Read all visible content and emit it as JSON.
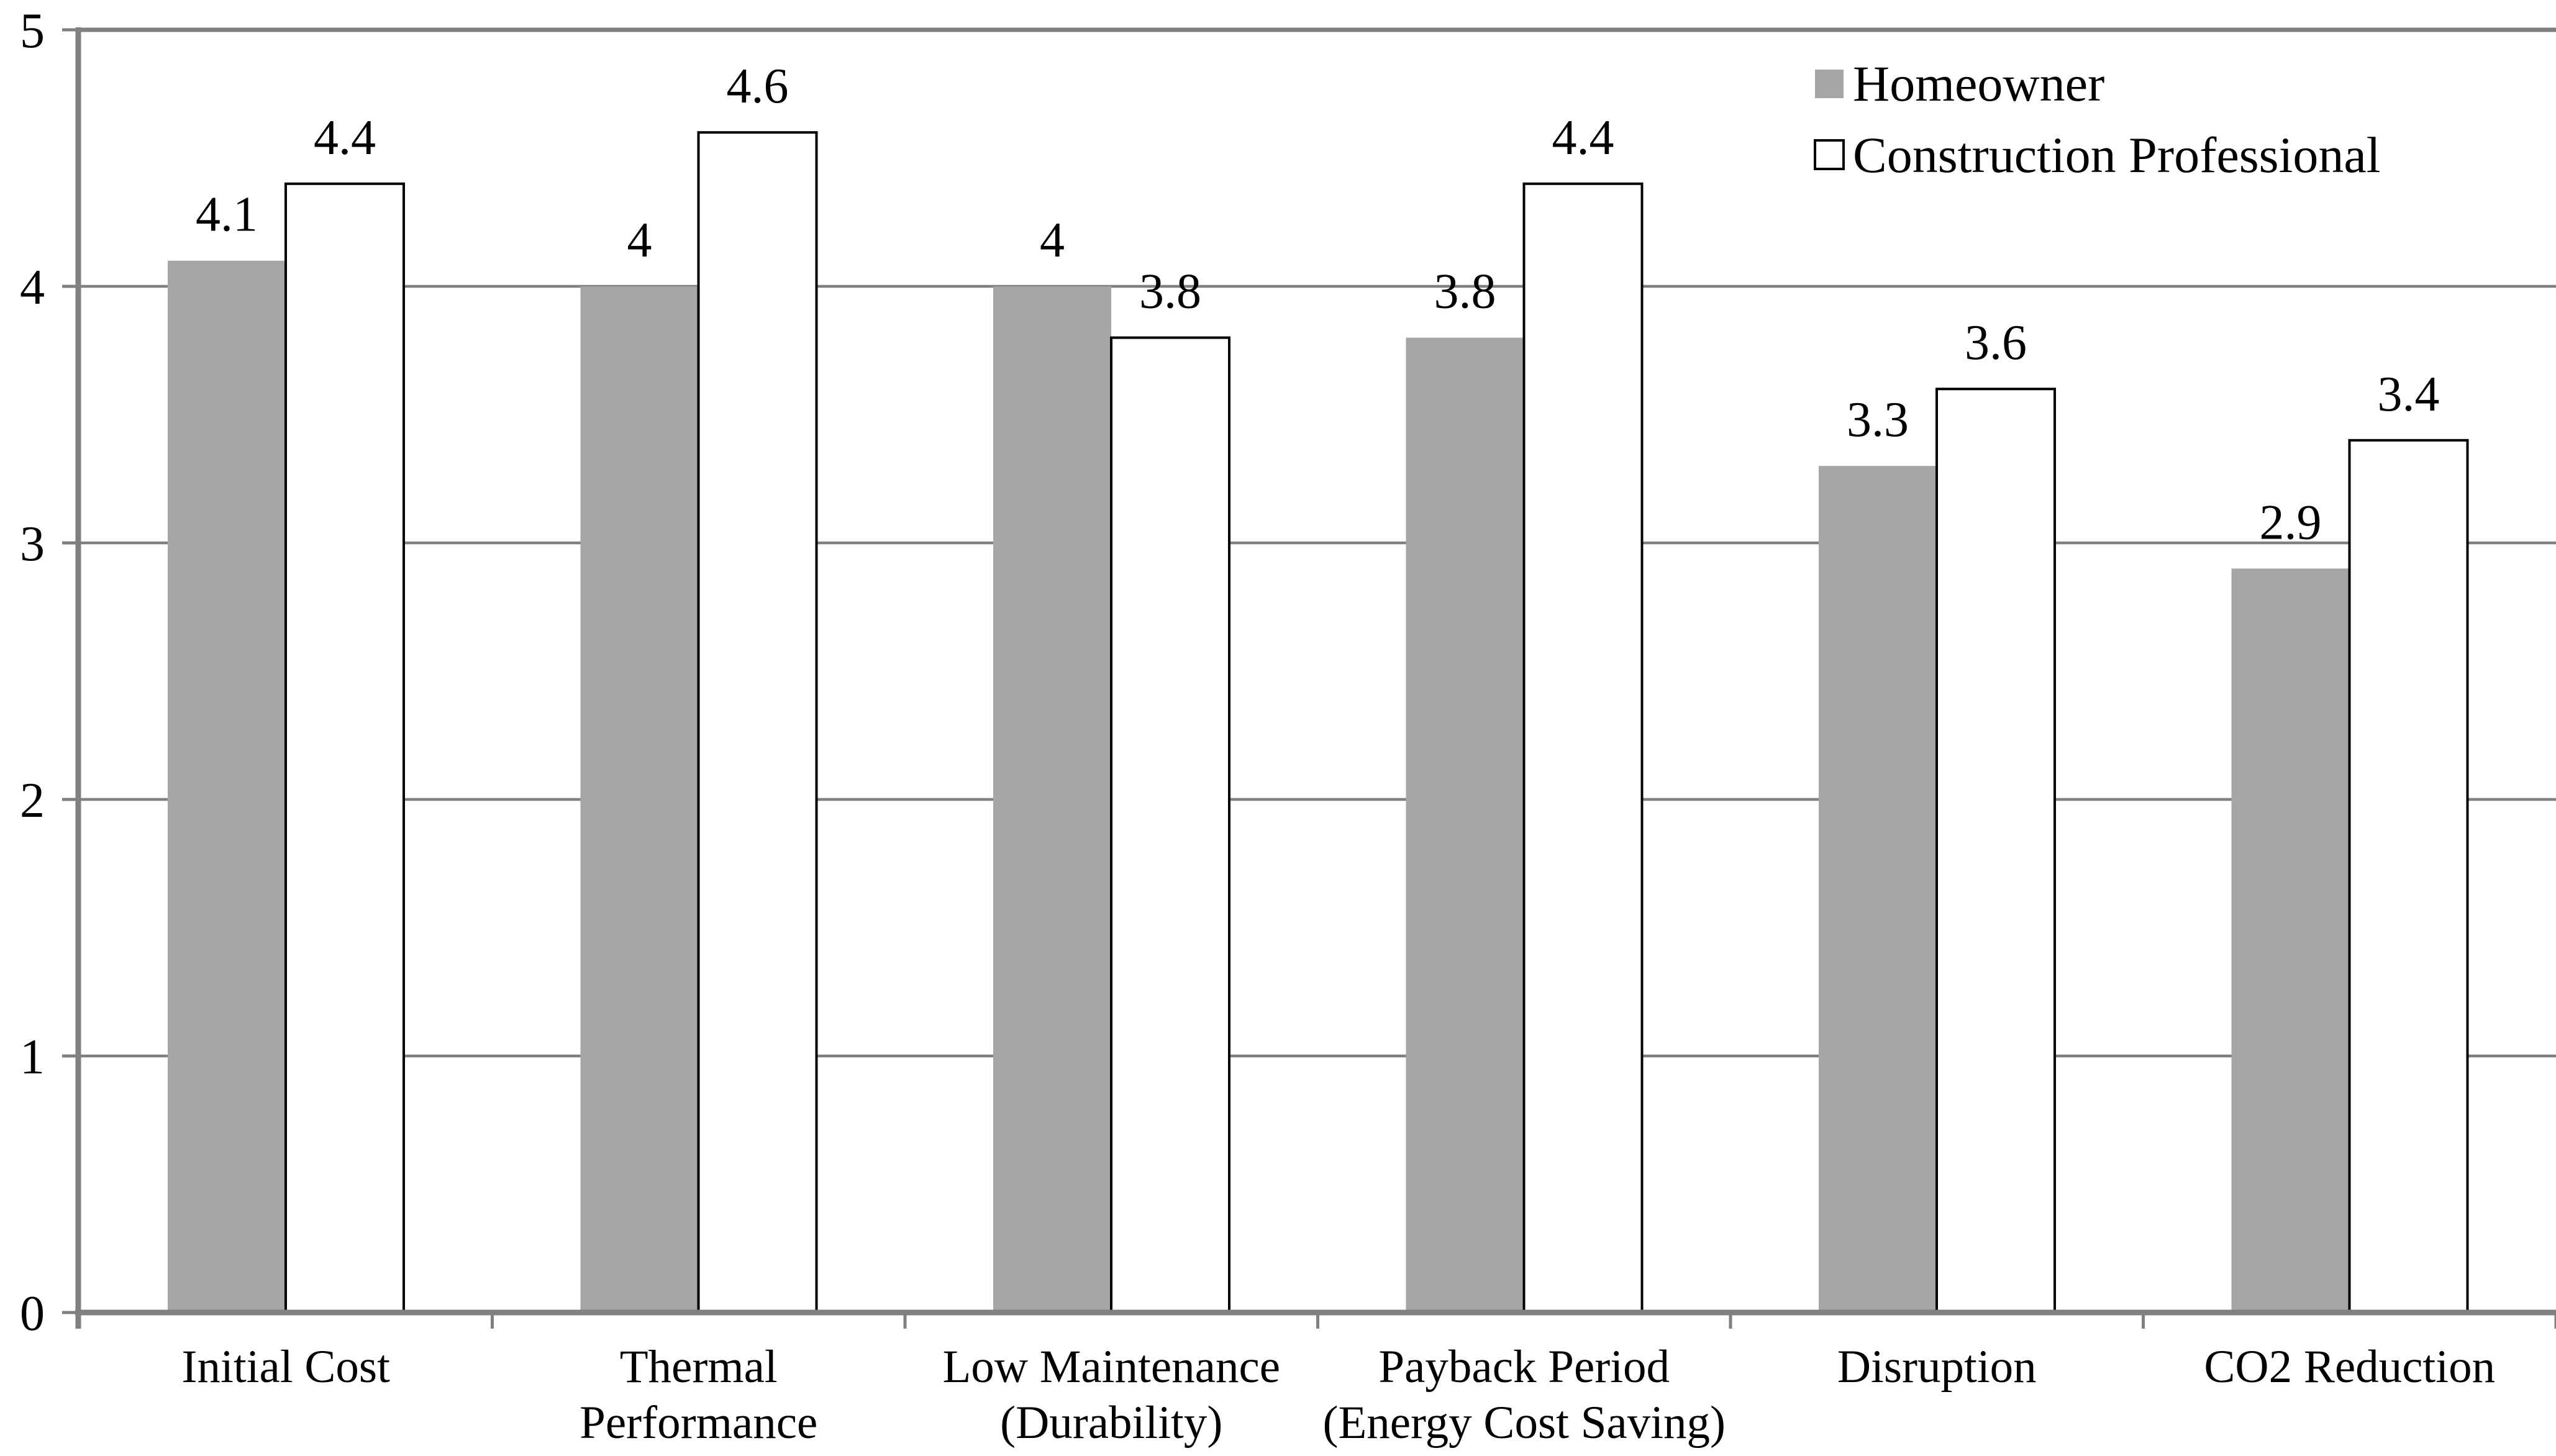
{
  "chart_data": {
    "type": "bar",
    "title": "",
    "xlabel": "",
    "ylabel": "",
    "ylim": [
      0,
      5
    ],
    "grid": true,
    "legend_position": "top-right",
    "yticks": [
      "0",
      "1",
      "2",
      "3",
      "4",
      "5"
    ],
    "categories": [
      "Initial Cost",
      "Thermal Performance",
      "Low Maintenance (Durability)",
      "Payback Period (Energy Cost Saving)",
      "Disruption",
      "CO2 Reduction"
    ],
    "category_lines": [
      [
        "Initial Cost"
      ],
      [
        "Thermal",
        "Performance"
      ],
      [
        "Low Maintenance",
        "(Durability)"
      ],
      [
        "Payback Period",
        "(Energy Cost Saving)"
      ],
      [
        "Disruption"
      ],
      [
        "CO2 Reduction"
      ]
    ],
    "series": [
      {
        "name": "Homeowner",
        "values": [
          4.1,
          4,
          4,
          3.8,
          3.3,
          2.9
        ],
        "labels": [
          "4.1",
          "4",
          "4",
          "3.8",
          "3.3",
          "2.9"
        ],
        "fill": "#a6a6a6",
        "stroke": "none"
      },
      {
        "name": "Construction Professional",
        "values": [
          4.4,
          4.6,
          3.8,
          4.4,
          3.6,
          3.4
        ],
        "labels": [
          "4.4",
          "4.6",
          "3.8",
          "4.4",
          "3.6",
          "3.4"
        ],
        "fill": "#ffffff",
        "stroke": "#000000"
      }
    ],
    "colors": {
      "grid": "#808080",
      "axis": "#808080",
      "text": "#000000",
      "homeowner_bar": "#a6a6a6",
      "professional_bar_fill": "#ffffff",
      "professional_bar_stroke": "#000000"
    }
  }
}
